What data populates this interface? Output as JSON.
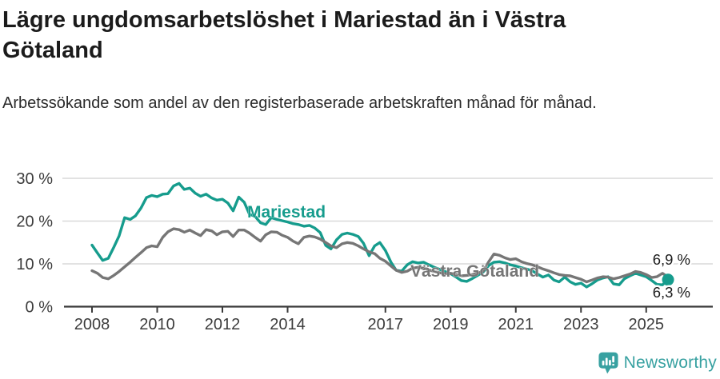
{
  "page": {
    "title": "Lägre ungdomsarbetslöshet i Mariestad än i Västra Götaland",
    "subtitle": "Arbetssökande som andel av den registerbaserade arbetskraften månad för månad."
  },
  "branding": {
    "logo_text": "Newsworthy",
    "logo_color": "#38a1a1",
    "logo_icon": "bar-chart-speech-bubble"
  },
  "chart_data": {
    "type": "line",
    "title": "Lägre ungdomsarbetslöshet i Mariestad än i Västra Götaland",
    "subtitle": "Arbetssökande som andel av den registerbaserade arbetskraften månad för månad.",
    "xlabel": "",
    "ylabel": "",
    "x_unit": "decimal_year",
    "xlim": [
      2007.8,
      2026.1
    ],
    "ylim": [
      0,
      32
    ],
    "grid": "horizontal",
    "legend_position": "inline-labels",
    "yticks": [
      {
        "value": 0,
        "label": "0 %"
      },
      {
        "value": 10,
        "label": "10 %"
      },
      {
        "value": 20,
        "label": "20 %"
      },
      {
        "value": 30,
        "label": "30 %"
      }
    ],
    "xticks": [
      {
        "value": 2008,
        "label": "2008"
      },
      {
        "value": 2010,
        "label": "2010"
      },
      {
        "value": 2012,
        "label": "2012"
      },
      {
        "value": 2014,
        "label": "2014"
      },
      {
        "value": 2017,
        "label": "2017"
      },
      {
        "value": 2019,
        "label": "2019"
      },
      {
        "value": 2021,
        "label": "2021"
      },
      {
        "value": 2023,
        "label": "2023"
      },
      {
        "value": 2025,
        "label": "2025"
      }
    ],
    "x": [
      2008.0,
      2008.17,
      2008.33,
      2008.5,
      2008.67,
      2008.83,
      2009.0,
      2009.17,
      2009.33,
      2009.5,
      2009.67,
      2009.83,
      2010.0,
      2010.17,
      2010.33,
      2010.5,
      2010.67,
      2010.83,
      2011.0,
      2011.17,
      2011.33,
      2011.5,
      2011.67,
      2011.83,
      2012.0,
      2012.17,
      2012.33,
      2012.5,
      2012.67,
      2012.83,
      2013.0,
      2013.17,
      2013.33,
      2013.5,
      2013.67,
      2013.83,
      2014.0,
      2014.17,
      2014.33,
      2014.5,
      2014.67,
      2014.83,
      2015.0,
      2015.17,
      2015.33,
      2015.5,
      2015.67,
      2015.83,
      2016.0,
      2016.17,
      2016.33,
      2016.5,
      2016.67,
      2016.83,
      2017.0,
      2017.17,
      2017.33,
      2017.5,
      2017.67,
      2017.83,
      2018.0,
      2018.17,
      2018.33,
      2018.5,
      2018.67,
      2018.83,
      2019.0,
      2019.17,
      2019.33,
      2019.5,
      2019.67,
      2019.83,
      2020.0,
      2020.17,
      2020.33,
      2020.5,
      2020.67,
      2020.83,
      2021.0,
      2021.17,
      2021.33,
      2021.5,
      2021.67,
      2021.83,
      2022.0,
      2022.17,
      2022.33,
      2022.5,
      2022.67,
      2022.83,
      2023.0,
      2023.17,
      2023.33,
      2023.5,
      2023.67,
      2023.83,
      2024.0,
      2024.17,
      2024.33,
      2024.5,
      2024.67,
      2024.83,
      2025.0,
      2025.17,
      2025.33,
      2025.5,
      2025.67
    ],
    "series": [
      {
        "name": "Mariestad",
        "color": "#169c8d",
        "end_label": "6,3 %",
        "end_value": 6.3,
        "end_dot": true,
        "values": [
          14.4,
          12.5,
          10.8,
          11.3,
          13.9,
          16.5,
          20.8,
          20.4,
          21.2,
          23.0,
          25.5,
          26.0,
          25.7,
          26.3,
          26.4,
          28.2,
          28.8,
          27.4,
          27.7,
          26.5,
          25.8,
          26.3,
          25.4,
          24.9,
          25.1,
          24.2,
          22.4,
          25.6,
          24.4,
          21.6,
          21.1,
          19.6,
          19.2,
          20.8,
          20.4,
          20.1,
          19.8,
          19.4,
          19.2,
          18.8,
          19.0,
          18.4,
          17.3,
          14.3,
          13.5,
          15.6,
          16.9,
          17.2,
          16.9,
          16.4,
          14.8,
          11.9,
          14.2,
          15.0,
          13.1,
          10.4,
          8.5,
          8.3,
          9.8,
          10.5,
          10.2,
          10.4,
          9.8,
          9.2,
          8.7,
          8.2,
          7.7,
          6.9,
          6.1,
          5.9,
          6.6,
          7.3,
          8.1,
          9.6,
          10.4,
          10.5,
          10.2,
          9.8,
          9.5,
          9.1,
          8.8,
          8.4,
          7.6,
          6.9,
          7.4,
          6.2,
          5.8,
          6.9,
          5.8,
          5.2,
          5.5,
          4.6,
          5.3,
          6.2,
          6.7,
          7.0,
          5.3,
          5.1,
          6.5,
          7.2,
          7.8,
          7.4,
          7.0,
          6.1,
          5.2,
          5.1,
          6.3
        ]
      },
      {
        "name": "Västra Götaland",
        "color": "#767676",
        "end_label": "6,9 %",
        "end_value": 6.9,
        "end_dot": false,
        "values": [
          8.4,
          7.8,
          6.8,
          6.5,
          7.3,
          8.2,
          9.3,
          10.4,
          11.5,
          12.6,
          13.8,
          14.2,
          14.0,
          16.2,
          17.5,
          18.2,
          18.0,
          17.4,
          17.9,
          17.2,
          16.6,
          18.0,
          17.7,
          16.8,
          17.5,
          17.6,
          16.4,
          17.9,
          17.9,
          17.2,
          16.2,
          15.3,
          16.8,
          17.5,
          17.4,
          16.7,
          16.2,
          15.3,
          14.7,
          16.2,
          16.5,
          16.3,
          15.8,
          15.0,
          14.2,
          13.8,
          14.7,
          15.0,
          14.8,
          14.2,
          13.5,
          12.8,
          12.4,
          11.3,
          10.6,
          9.5,
          8.5,
          8.0,
          8.3,
          9.0,
          9.2,
          9.0,
          8.6,
          8.2,
          7.9,
          7.7,
          7.8,
          7.5,
          7.2,
          7.3,
          7.5,
          7.8,
          8.3,
          10.5,
          12.3,
          12.0,
          11.4,
          11.0,
          11.2,
          10.5,
          10.1,
          9.8,
          9.3,
          8.8,
          8.4,
          7.9,
          7.5,
          7.3,
          7.2,
          6.8,
          6.4,
          5.8,
          6.2,
          6.7,
          7.0,
          6.9,
          6.5,
          6.8,
          7.2,
          7.6,
          8.2,
          8.0,
          7.5,
          6.8,
          7.0,
          7.8,
          6.9
        ]
      }
    ]
  }
}
